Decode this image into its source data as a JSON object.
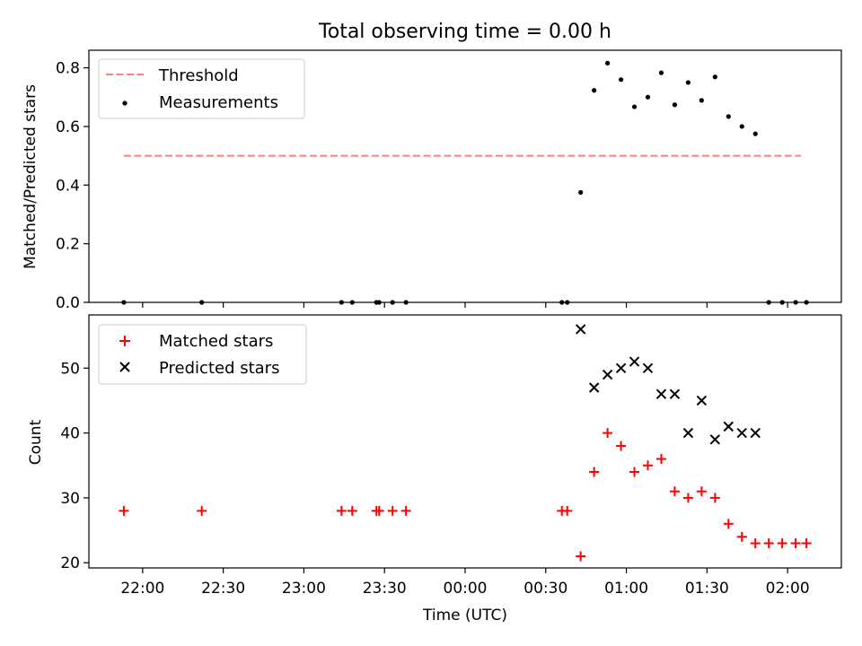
{
  "chart_data": [
    {
      "type": "scatter",
      "title": "Total observing time = 0.00 h",
      "xlabel": "",
      "ylabel": "Matched/Predicted stars",
      "x_range": [
        "21:40",
        "02:20"
      ],
      "ylim": [
        0,
        0.86
      ],
      "yticks": [
        0.0,
        0.2,
        0.4,
        0.6,
        0.8
      ],
      "ytick_labels": [
        "0.0",
        "0.2",
        "0.4",
        "0.6",
        "0.8"
      ],
      "legend_position": "top-left",
      "threshold": {
        "name": "Threshold",
        "color": "#ff7f7f",
        "style": "dashed",
        "value": 0.5,
        "x_start": "21:53",
        "x_end": "02:05"
      },
      "series": [
        {
          "name": "Measurements",
          "color": "#000000",
          "marker": "dot",
          "points": [
            {
              "x": "21:53",
              "y": 0.0
            },
            {
              "x": "22:22",
              "y": 0.0
            },
            {
              "x": "23:14",
              "y": 0.0
            },
            {
              "x": "23:18",
              "y": 0.0
            },
            {
              "x": "23:27",
              "y": 0.0
            },
            {
              "x": "23:28",
              "y": 0.0
            },
            {
              "x": "23:33",
              "y": 0.0
            },
            {
              "x": "23:38",
              "y": 0.0
            },
            {
              "x": "00:36",
              "y": 0.0
            },
            {
              "x": "00:38",
              "y": 0.0
            },
            {
              "x": "00:43",
              "y": 0.375
            },
            {
              "x": "00:48",
              "y": 0.723
            },
            {
              "x": "00:53",
              "y": 0.816
            },
            {
              "x": "00:58",
              "y": 0.76
            },
            {
              "x": "01:03",
              "y": 0.667
            },
            {
              "x": "01:08",
              "y": 0.7
            },
            {
              "x": "01:13",
              "y": 0.783
            },
            {
              "x": "01:18",
              "y": 0.674
            },
            {
              "x": "01:23",
              "y": 0.75
            },
            {
              "x": "01:28",
              "y": 0.689
            },
            {
              "x": "01:33",
              "y": 0.769
            },
            {
              "x": "01:38",
              "y": 0.634
            },
            {
              "x": "01:43",
              "y": 0.6
            },
            {
              "x": "01:48",
              "y": 0.575
            },
            {
              "x": "01:53",
              "y": 0.0
            },
            {
              "x": "01:58",
              "y": 0.0
            },
            {
              "x": "02:03",
              "y": 0.0
            },
            {
              "x": "02:07",
              "y": 0.0
            }
          ]
        }
      ]
    },
    {
      "type": "scatter",
      "title": "",
      "xlabel": "Time (UTC)",
      "ylabel": "Count",
      "x_range": [
        "21:40",
        "02:20"
      ],
      "ylim": [
        19.2,
        58.2
      ],
      "yticks": [
        20,
        30,
        40,
        50
      ],
      "ytick_labels": [
        "20",
        "30",
        "40",
        "50"
      ],
      "xticks": [
        "22:00",
        "22:30",
        "23:00",
        "23:30",
        "00:00",
        "00:30",
        "01:00",
        "01:30",
        "02:00"
      ],
      "legend_position": "top-left",
      "series": [
        {
          "name": "Matched stars",
          "color": "#ff0000",
          "marker": "plus",
          "points": [
            {
              "x": "21:53",
              "y": 28
            },
            {
              "x": "22:22",
              "y": 28
            },
            {
              "x": "23:14",
              "y": 28
            },
            {
              "x": "23:18",
              "y": 28
            },
            {
              "x": "23:27",
              "y": 28
            },
            {
              "x": "23:28",
              "y": 28
            },
            {
              "x": "23:33",
              "y": 28
            },
            {
              "x": "23:38",
              "y": 28
            },
            {
              "x": "00:36",
              "y": 28
            },
            {
              "x": "00:38",
              "y": 28
            },
            {
              "x": "00:43",
              "y": 21
            },
            {
              "x": "00:48",
              "y": 34
            },
            {
              "x": "00:53",
              "y": 40
            },
            {
              "x": "00:58",
              "y": 38
            },
            {
              "x": "01:03",
              "y": 34
            },
            {
              "x": "01:08",
              "y": 35
            },
            {
              "x": "01:13",
              "y": 36
            },
            {
              "x": "01:18",
              "y": 31
            },
            {
              "x": "01:23",
              "y": 30
            },
            {
              "x": "01:28",
              "y": 31
            },
            {
              "x": "01:33",
              "y": 30
            },
            {
              "x": "01:38",
              "y": 26
            },
            {
              "x": "01:43",
              "y": 24
            },
            {
              "x": "01:48",
              "y": 23
            },
            {
              "x": "01:53",
              "y": 23
            },
            {
              "x": "01:58",
              "y": 23
            },
            {
              "x": "02:03",
              "y": 23
            },
            {
              "x": "02:07",
              "y": 23
            }
          ]
        },
        {
          "name": "Predicted stars",
          "color": "#000000",
          "marker": "x",
          "points": [
            {
              "x": "00:43",
              "y": 56
            },
            {
              "x": "00:48",
              "y": 47
            },
            {
              "x": "00:53",
              "y": 49
            },
            {
              "x": "00:58",
              "y": 50
            },
            {
              "x": "01:03",
              "y": 51
            },
            {
              "x": "01:08",
              "y": 50
            },
            {
              "x": "01:13",
              "y": 46
            },
            {
              "x": "01:18",
              "y": 46
            },
            {
              "x": "01:23",
              "y": 40
            },
            {
              "x": "01:28",
              "y": 45
            },
            {
              "x": "01:33",
              "y": 39
            },
            {
              "x": "01:38",
              "y": 41
            },
            {
              "x": "01:43",
              "y": 40
            },
            {
              "x": "01:48",
              "y": 40
            }
          ]
        }
      ]
    }
  ]
}
